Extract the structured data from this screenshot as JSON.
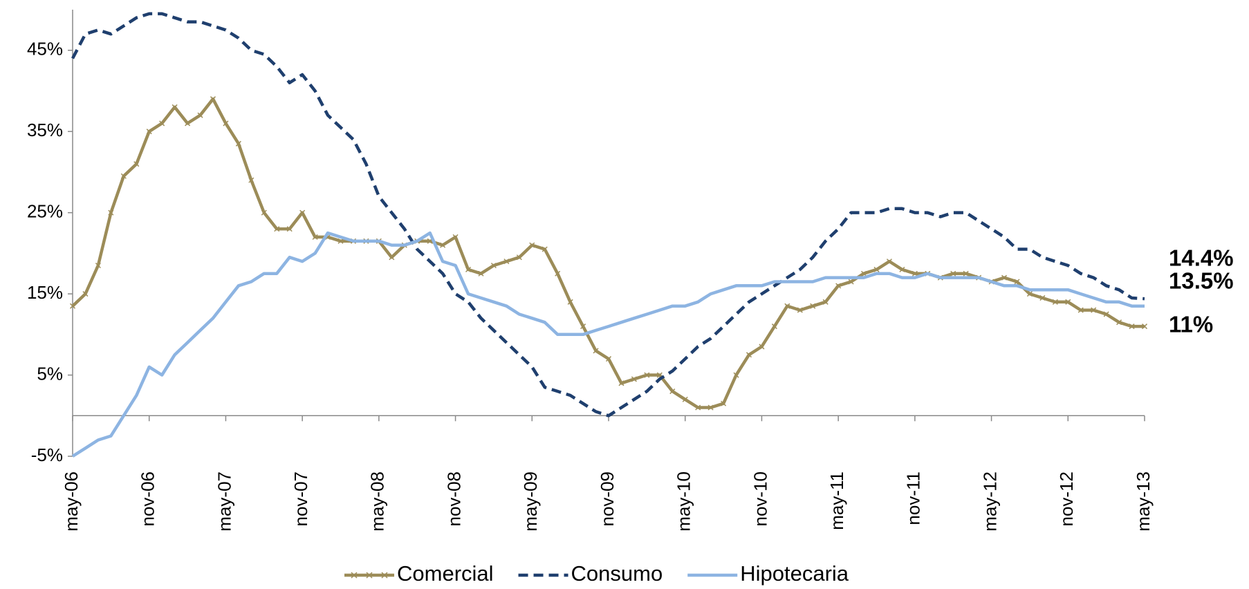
{
  "chart_data": {
    "type": "line",
    "categories": [
      "may-06",
      null,
      null,
      null,
      null,
      null,
      "nov-06",
      null,
      null,
      null,
      null,
      null,
      "may-07",
      null,
      null,
      null,
      null,
      null,
      "nov-07",
      null,
      null,
      null,
      null,
      null,
      "may-08",
      null,
      null,
      null,
      null,
      null,
      "nov-08",
      null,
      null,
      null,
      null,
      null,
      "may-09",
      null,
      null,
      null,
      null,
      null,
      "nov-09",
      null,
      null,
      null,
      null,
      null,
      "may-10",
      null,
      null,
      null,
      null,
      null,
      "nov-10",
      null,
      null,
      null,
      null,
      null,
      "may-11",
      null,
      null,
      null,
      null,
      null,
      "nov-11",
      null,
      null,
      null,
      null,
      null,
      "may-12",
      null,
      null,
      null,
      null,
      null,
      "nov-12",
      null,
      null,
      null,
      null,
      null,
      "may-13"
    ],
    "series": [
      {
        "name": "Comercial",
        "color": "#9c8c58",
        "line_style": "solid",
        "marker": "x",
        "end_label": "11%",
        "values": [
          13.5,
          15,
          18.5,
          25,
          29.5,
          31,
          35,
          36,
          38,
          36,
          37,
          39,
          36,
          33.5,
          29,
          25,
          23,
          23,
          25,
          22,
          22,
          21.5,
          21.5,
          21.5,
          21.5,
          19.5,
          21,
          21.5,
          21.5,
          21,
          22,
          18,
          17.5,
          18.5,
          19,
          19.5,
          21,
          20.5,
          17.5,
          14,
          11,
          8,
          7,
          4,
          4.5,
          5,
          5,
          3,
          2,
          1,
          1,
          1.5,
          5,
          7.5,
          8.5,
          11,
          13.5,
          13,
          13.5,
          14,
          16,
          16.5,
          17.5,
          18,
          19,
          18,
          17.5,
          17.5,
          17,
          17.5,
          17.5,
          17,
          16.5,
          17,
          16.5,
          15,
          14.5,
          14,
          14,
          13,
          13,
          12.5,
          11.5,
          11,
          11
        ]
      },
      {
        "name": "Consumo",
        "color": "#1f3f6e",
        "line_style": "dashed",
        "marker": "none",
        "end_label": "14.4%",
        "values": [
          44,
          47,
          47.5,
          47,
          48,
          49,
          49.5,
          49.5,
          49,
          48.5,
          48.5,
          48,
          47.5,
          46.5,
          45,
          44.5,
          43,
          41,
          42,
          40,
          37,
          35.5,
          34,
          31,
          27,
          25,
          23,
          20.5,
          19,
          17.5,
          15,
          14,
          12,
          10.5,
          9,
          7.5,
          6,
          3.5,
          3,
          2.5,
          1.5,
          0.5,
          0,
          1,
          2,
          3,
          4.5,
          5.5,
          7,
          8.5,
          9.5,
          11,
          12.5,
          14,
          15,
          16,
          17,
          18,
          19.5,
          21.5,
          23,
          25,
          25,
          25,
          25.5,
          25.5,
          25,
          25,
          24.5,
          25,
          25,
          24,
          23,
          22,
          20.5,
          20.5,
          19.5,
          19,
          18.5,
          17.5,
          17,
          16,
          15.5,
          14.5,
          14.4
        ]
      },
      {
        "name": "Hipotecaria",
        "color": "#8db4e2",
        "line_style": "solid",
        "marker": "none",
        "end_label": "13.5%",
        "end_label_color": "#5a8ac6",
        "values": [
          -5,
          -4,
          -3,
          -2.5,
          0,
          2.5,
          6,
          5,
          7.5,
          9,
          10.5,
          12,
          14,
          16,
          16.5,
          17.5,
          17.5,
          19.5,
          19,
          20,
          22.5,
          22,
          21.5,
          21.5,
          21.5,
          21,
          21,
          21.5,
          22.5,
          19,
          18.5,
          15,
          14.5,
          14,
          13.5,
          12.5,
          12,
          11.5,
          10,
          10,
          10,
          10.5,
          11,
          11.5,
          12,
          12.5,
          13,
          13.5,
          13.5,
          14,
          15,
          15.5,
          16,
          16,
          16,
          16.5,
          16.5,
          16.5,
          16.5,
          17,
          17,
          17,
          17,
          17.5,
          17.5,
          17,
          17,
          17.5,
          17,
          17,
          17,
          17,
          16.5,
          16,
          16,
          15.5,
          15.5,
          15.5,
          15.5,
          15,
          14.5,
          14,
          14,
          13.5,
          13.5
        ]
      }
    ],
    "ylim": [
      -5,
      50
    ],
    "yticks": [
      {
        "value": -5,
        "label": "-5%"
      },
      {
        "value": 5,
        "label": "5%"
      },
      {
        "value": 15,
        "label": "15%"
      },
      {
        "value": 25,
        "label": "25%"
      },
      {
        "value": 35,
        "label": "35%"
      },
      {
        "value": 45,
        "label": "45%"
      }
    ],
    "grid": false,
    "legend": "bottom"
  }
}
